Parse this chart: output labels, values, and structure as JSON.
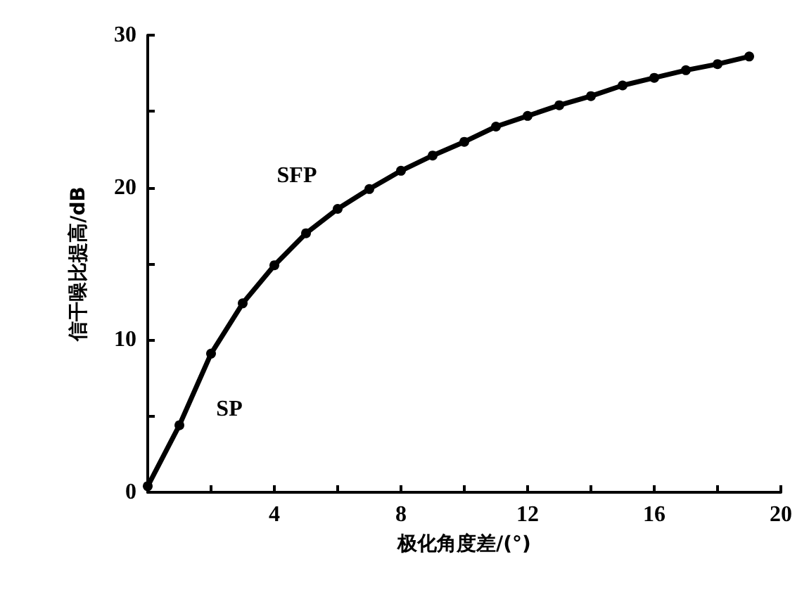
{
  "chart_data": {
    "type": "line",
    "xlabel": "极化角度差/(°)",
    "ylabel": "信干噪比提高/dB",
    "x": [
      0,
      1,
      2,
      3,
      4,
      5,
      6,
      7,
      8,
      9,
      10,
      11,
      12,
      13,
      14,
      15,
      16,
      17,
      18,
      19
    ],
    "series": [
      {
        "color": "#000000",
        "values": [
          0.4,
          4.4,
          9.1,
          12.4,
          14.9,
          17.0,
          18.6,
          19.9,
          21.1,
          22.1,
          23.0,
          24.0,
          24.7,
          25.4,
          26.0,
          26.7,
          27.2,
          27.7,
          28.1,
          28.6
        ]
      }
    ],
    "xlim": [
      0,
      20
    ],
    "xticks": [
      {
        "value": 2,
        "label": null
      },
      4,
      {
        "value": 6,
        "label": null
      },
      8,
      {
        "value": 10,
        "label": null
      },
      12,
      {
        "value": 14,
        "label": null
      },
      16,
      {
        "value": 18,
        "label": null
      },
      20
    ],
    "ylim": [
      0,
      30
    ],
    "yticks": [
      0,
      {
        "value": 5,
        "label": null
      },
      10,
      {
        "value": 15,
        "label": null
      },
      20,
      {
        "value": 25,
        "label": null
      },
      30
    ],
    "annotations": [
      "SP",
      "SFP"
    ],
    "grid": false,
    "marker": "circle",
    "line_style": "solid"
  }
}
